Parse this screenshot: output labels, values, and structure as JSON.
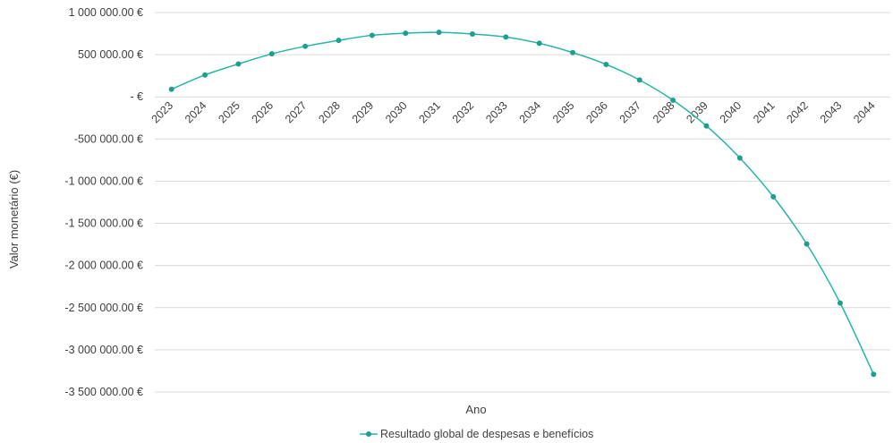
{
  "chart_data": {
    "type": "line",
    "xlabel": "Ano",
    "ylabel": "Valor monetário (€)",
    "ylim": [
      -3500000,
      1000000
    ],
    "grid": true,
    "legend_placement": "bottom-center",
    "y_ticks": [
      {
        "value": 1000000,
        "label": "1 000 000.00 €"
      },
      {
        "value": 500000,
        "label": "500 000.00 €"
      },
      {
        "value": 0,
        "label": "-   €"
      },
      {
        "value": -500000,
        "label": "-500 000.00 €"
      },
      {
        "value": -1000000,
        "label": "-1 000 000.00 €"
      },
      {
        "value": -1500000,
        "label": "-1 500 000.00 €"
      },
      {
        "value": -2000000,
        "label": "-2 000 000.00 €"
      },
      {
        "value": -2500000,
        "label": "-2 500 000.00 €"
      },
      {
        "value": -3000000,
        "label": "-3 000 000.00 €"
      },
      {
        "value": -3500000,
        "label": "-3 500 000.00 €"
      }
    ],
    "categories": [
      "2023",
      "2024",
      "2025",
      "2026",
      "2027",
      "2028",
      "2029",
      "2030",
      "2031",
      "2032",
      "2033",
      "2034",
      "2035",
      "2036",
      "2037",
      "2038",
      "2039",
      "2040",
      "2041",
      "2042",
      "2043",
      "2044"
    ],
    "series": [
      {
        "name": "Resultado global de despesas e benefícios",
        "color": "#26b5a6",
        "values": [
          90000,
          260000,
          390000,
          510000,
          600000,
          670000,
          730000,
          755000,
          765000,
          745000,
          710000,
          635000,
          525000,
          385000,
          200000,
          -40000,
          -345000,
          -725000,
          -1185000,
          -1745000,
          -2445000,
          -3290000
        ]
      }
    ]
  }
}
